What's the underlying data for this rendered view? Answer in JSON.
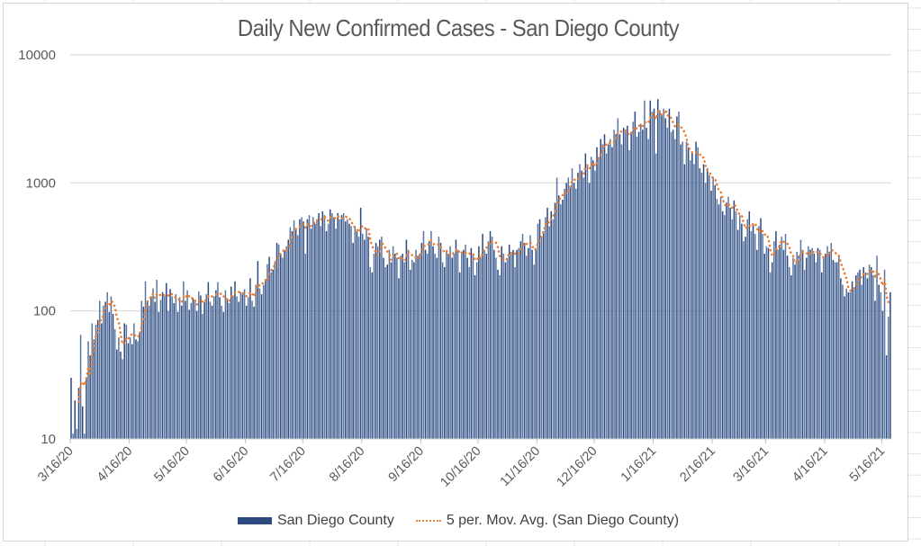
{
  "chart_data": {
    "type": "bar",
    "title": "Daily New Confirmed Cases - San Diego County",
    "xlabel": "",
    "ylabel": "",
    "y_scale": "log",
    "ylim": [
      10,
      10000
    ],
    "y_ticks": [
      "10",
      "100",
      "1000",
      "10000"
    ],
    "y_tick_values": [
      10,
      100,
      1000,
      10000
    ],
    "x_start_date": "3/16/20",
    "x_tick_labels": [
      "3/16/20",
      "4/16/20",
      "5/16/20",
      "6/16/20",
      "7/16/20",
      "8/16/20",
      "9/16/20",
      "10/16/20",
      "11/16/20",
      "12/16/20",
      "1/16/21",
      "2/16/21",
      "3/16/21",
      "4/16/21",
      "5/16/21"
    ],
    "x_tick_day_index": [
      0,
      31,
      61,
      92,
      122,
      153,
      184,
      214,
      245,
      275,
      306,
      337,
      365,
      396,
      426
    ],
    "grid": "horizontal",
    "legend_position": "bottom",
    "colors": {
      "bars": "#2b4a80",
      "moving_average": "#ed7d31"
    },
    "series": [
      {
        "name": "San Diego County",
        "kind": "bar",
        "values": [
          30,
          11,
          20,
          12,
          25,
          65,
          18,
          11,
          30,
          58,
          45,
          80,
          60,
          78,
          85,
          120,
          80,
          110,
          118,
          140,
          98,
          130,
          95,
          72,
          50,
          62,
          48,
          42,
          80,
          78,
          56,
          62,
          55,
          80,
          60,
          58,
          68,
          120,
          108,
          170,
          120,
          110,
          130,
          150,
          118,
          175,
          98,
          122,
          140,
          132,
          165,
          100,
          148,
          130,
          115,
          135,
          98,
          128,
          110,
          170,
          120,
          145,
          102,
          115,
          125,
          118,
          100,
          142,
          132,
          95,
          118,
          135,
          168,
          118,
          110,
          130,
          145,
          168,
          128,
          110,
          98,
          145,
          125,
          115,
          155,
          132,
          170,
          130,
          118,
          140,
          135,
          148,
          110,
          128,
          180,
          120,
          108,
          160,
          245,
          150,
          135,
          160,
          178,
          232,
          265,
          200,
          210,
          245,
          340,
          330,
          280,
          260,
          300,
          320,
          360,
          450,
          420,
          510,
          440,
          390,
          520,
          540,
          500,
          280,
          520,
          560,
          440,
          540,
          480,
          520,
          580,
          460,
          600,
          560,
          420,
          480,
          620,
          580,
          540,
          440,
          580,
          520,
          560,
          580,
          500,
          520,
          480,
          460,
          340,
          460,
          420,
          380,
          640,
          400,
          360,
          440,
          380,
          220,
          200,
          280,
          340,
          320,
          360,
          380,
          260,
          220,
          230,
          300,
          240,
          320,
          280,
          260,
          180,
          270,
          280,
          240,
          360,
          300,
          210,
          250,
          240,
          300,
          270,
          280,
          340,
          420,
          300,
          280,
          350,
          420,
          320,
          280,
          260,
          380,
          340,
          240,
          220,
          300,
          280,
          320,
          260,
          280,
          360,
          300,
          200,
          290,
          300,
          330,
          260,
          220,
          310,
          280,
          190,
          240,
          320,
          260,
          400,
          300,
          280,
          350,
          420,
          380,
          300,
          260,
          210,
          190,
          320,
          280,
          240,
          260,
          330,
          290,
          300,
          220,
          300,
          310,
          350,
          400,
          340,
          270,
          310,
          390,
          300,
          230,
          300,
          480,
          520,
          380,
          420,
          540,
          640,
          460,
          600,
          520,
          700,
          1100,
          800,
          680,
          740,
          900,
          1000,
          1100,
          920,
          1300,
          1000,
          900,
          1200,
          1400,
          1250,
          1100,
          1700,
          1400,
          1000,
          1600,
          1500,
          1250,
          1900,
          1600,
          2200,
          2000,
          2400,
          1700,
          2000,
          2200,
          1900,
          2600,
          2400,
          3200,
          2400,
          2000,
          2700,
          2500,
          2800,
          1800,
          2500,
          3000,
          3600,
          2300,
          2500,
          2900,
          2600,
          4400,
          2700,
          2200,
          4400,
          3600,
          3800,
          1700,
          4500,
          3700,
          3400,
          3800,
          3200,
          2700,
          3800,
          2500,
          2600,
          2200,
          3300,
          3600,
          2000,
          2100,
          1400,
          2100,
          1900,
          1500,
          1700,
          1400,
          2100,
          1900,
          1300,
          1200,
          1400,
          1000,
          1300,
          1150,
          870,
          1100,
          960,
          750,
          680,
          780,
          600,
          560,
          700,
          780,
          640,
          520,
          730,
          600,
          430,
          560,
          480,
          350,
          380,
          520,
          600,
          420,
          480,
          400,
          300,
          460,
          530,
          400,
          280,
          320,
          310,
          200,
          240,
          350,
          420,
          300,
          330,
          380,
          300,
          400,
          270,
          220,
          190,
          260,
          230,
          290,
          270,
          360,
          300,
          210,
          260,
          320,
          300,
          310,
          280,
          240,
          310,
          300,
          200,
          260,
          280,
          320,
          290,
          340,
          250,
          240,
          240,
          275,
          180,
          160,
          130,
          150,
          140,
          140,
          170,
          150,
          190,
          200,
          210,
          160,
          220,
          200,
          180,
          230,
          220,
          190,
          120,
          270,
          160,
          140,
          100,
          210,
          45,
          90,
          140
        ]
      },
      {
        "name": "5 per. Mov. Avg. (San Diego County)",
        "kind": "line",
        "style": "dotted",
        "note": "5-period moving average of the bar series (computed from values)"
      }
    ]
  }
}
